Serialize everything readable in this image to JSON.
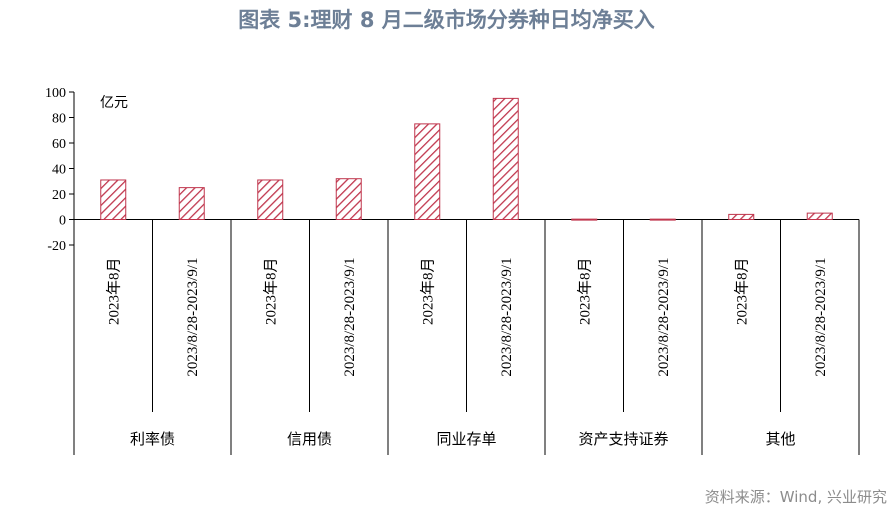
{
  "title": "图表 5:理财 8 月二级市场分券种日均净买入",
  "source": "资料来源：Wind, 兴业研究",
  "chart_data": {
    "type": "bar",
    "unit": "亿元",
    "ylim": [
      -20,
      100
    ],
    "yticks": [
      "100",
      "80",
      "60",
      "40",
      "20",
      "0",
      "-20"
    ],
    "yticks_values": [
      100,
      80,
      60,
      40,
      20,
      0,
      -20
    ],
    "groups": [
      {
        "name": "利率债",
        "categories": [
          "2023年8月",
          "2023/8/28-2023/9/1"
        ],
        "values": [
          31,
          25
        ]
      },
      {
        "name": "信用债",
        "categories": [
          "2023年8月",
          "2023/8/28-2023/9/1"
        ],
        "values": [
          31,
          32
        ]
      },
      {
        "name": "同业存单",
        "categories": [
          "2023年8月",
          "2023/8/28-2023/9/1"
        ],
        "values": [
          75,
          95
        ]
      },
      {
        "name": "资产支持证券",
        "categories": [
          "2023年8月",
          "2023/8/28-2023/9/1"
        ],
        "values": [
          0.3,
          0.3
        ]
      },
      {
        "name": "其他",
        "categories": [
          "2023年8月",
          "2023/8/28-2023/9/1"
        ],
        "values": [
          4,
          5
        ]
      }
    ],
    "bar_color": "#c0364d",
    "grid": false
  }
}
